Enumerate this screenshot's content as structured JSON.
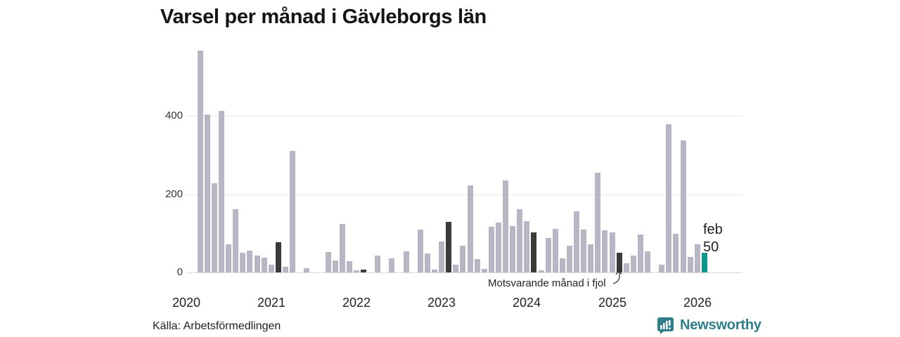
{
  "header": {
    "title": "Varsel per månad i Gävleborgs län"
  },
  "annotation": {
    "text": "Motsvarande månad i fjol"
  },
  "highlight": {
    "month_label": "feb",
    "value_label": "50"
  },
  "footer": {
    "source": "Källa: Arbetsförmedlingen",
    "brand": "Newsworthy"
  },
  "colors": {
    "bar": "#b8b5c5",
    "bar_previous_feb": "#3b3b3b",
    "bar_current": "#0d968c",
    "grid": "#e3e3e8",
    "brand_teal": "#2e7f8a"
  },
  "chart_data": {
    "type": "bar",
    "title": "Varsel per månad i Gävleborgs län",
    "xlabel": "",
    "ylabel": "",
    "y_ticks": [
      0,
      200,
      400
    ],
    "ylim": [
      0,
      580
    ],
    "x_tick_labels": [
      "2020",
      "2021",
      "2022",
      "2023",
      "2024",
      "2025",
      "2026"
    ],
    "legend": {
      "current_month": "feb 2026 = 50",
      "comparison": "Motsvarande månad i fjol (mörka staplar = februari varje år)"
    },
    "months": [
      {
        "month": "2020-03",
        "value": 567
      },
      {
        "month": "2020-04",
        "value": 403
      },
      {
        "month": "2020-05",
        "value": 228
      },
      {
        "month": "2020-06",
        "value": 413
      },
      {
        "month": "2020-07",
        "value": 71
      },
      {
        "month": "2020-08",
        "value": 161
      },
      {
        "month": "2020-09",
        "value": 51
      },
      {
        "month": "2020-10",
        "value": 55
      },
      {
        "month": "2020-11",
        "value": 43
      },
      {
        "month": "2020-12",
        "value": 37
      },
      {
        "month": "2021-01",
        "value": 19
      },
      {
        "month": "2021-02",
        "value": 78,
        "role": "previous_feb"
      },
      {
        "month": "2021-03",
        "value": 15
      },
      {
        "month": "2021-04",
        "value": 311
      },
      {
        "month": "2021-05",
        "value": 0
      },
      {
        "month": "2021-06",
        "value": 10
      },
      {
        "month": "2021-07",
        "value": 0
      },
      {
        "month": "2021-08",
        "value": 0
      },
      {
        "month": "2021-09",
        "value": 52
      },
      {
        "month": "2021-10",
        "value": 30
      },
      {
        "month": "2021-11",
        "value": 124
      },
      {
        "month": "2021-12",
        "value": 28
      },
      {
        "month": "2022-01",
        "value": 6
      },
      {
        "month": "2022-02",
        "value": 8,
        "role": "previous_feb"
      },
      {
        "month": "2022-03",
        "value": 0
      },
      {
        "month": "2022-04",
        "value": 43
      },
      {
        "month": "2022-05",
        "value": 0
      },
      {
        "month": "2022-06",
        "value": 35
      },
      {
        "month": "2022-07",
        "value": 0
      },
      {
        "month": "2022-08",
        "value": 53
      },
      {
        "month": "2022-09",
        "value": 0
      },
      {
        "month": "2022-10",
        "value": 110
      },
      {
        "month": "2022-11",
        "value": 48
      },
      {
        "month": "2022-12",
        "value": 8
      },
      {
        "month": "2023-01",
        "value": 79
      },
      {
        "month": "2023-02",
        "value": 130,
        "role": "previous_feb"
      },
      {
        "month": "2023-03",
        "value": 20
      },
      {
        "month": "2023-04",
        "value": 69
      },
      {
        "month": "2023-05",
        "value": 223
      },
      {
        "month": "2023-06",
        "value": 34
      },
      {
        "month": "2023-07",
        "value": 9
      },
      {
        "month": "2023-08",
        "value": 116
      },
      {
        "month": "2023-09",
        "value": 127
      },
      {
        "month": "2023-10",
        "value": 235
      },
      {
        "month": "2023-11",
        "value": 119
      },
      {
        "month": "2023-12",
        "value": 161
      },
      {
        "month": "2024-01",
        "value": 131
      },
      {
        "month": "2024-02",
        "value": 103,
        "role": "previous_feb"
      },
      {
        "month": "2024-03",
        "value": 5
      },
      {
        "month": "2024-04",
        "value": 88
      },
      {
        "month": "2024-05",
        "value": 112
      },
      {
        "month": "2024-06",
        "value": 35
      },
      {
        "month": "2024-07",
        "value": 68
      },
      {
        "month": "2024-08",
        "value": 156
      },
      {
        "month": "2024-09",
        "value": 109
      },
      {
        "month": "2024-10",
        "value": 72
      },
      {
        "month": "2024-11",
        "value": 254
      },
      {
        "month": "2024-12",
        "value": 107
      },
      {
        "month": "2025-01",
        "value": 103
      },
      {
        "month": "2025-02",
        "value": 50,
        "role": "previous_feb"
      },
      {
        "month": "2025-03",
        "value": 23
      },
      {
        "month": "2025-04",
        "value": 43
      },
      {
        "month": "2025-05",
        "value": 96
      },
      {
        "month": "2025-06",
        "value": 54
      },
      {
        "month": "2025-07",
        "value": 0
      },
      {
        "month": "2025-08",
        "value": 20
      },
      {
        "month": "2025-09",
        "value": 378
      },
      {
        "month": "2025-10",
        "value": 98
      },
      {
        "month": "2025-11",
        "value": 338
      },
      {
        "month": "2025-12",
        "value": 39
      },
      {
        "month": "2026-01",
        "value": 72
      },
      {
        "month": "2026-02",
        "value": 50,
        "role": "current"
      }
    ]
  }
}
